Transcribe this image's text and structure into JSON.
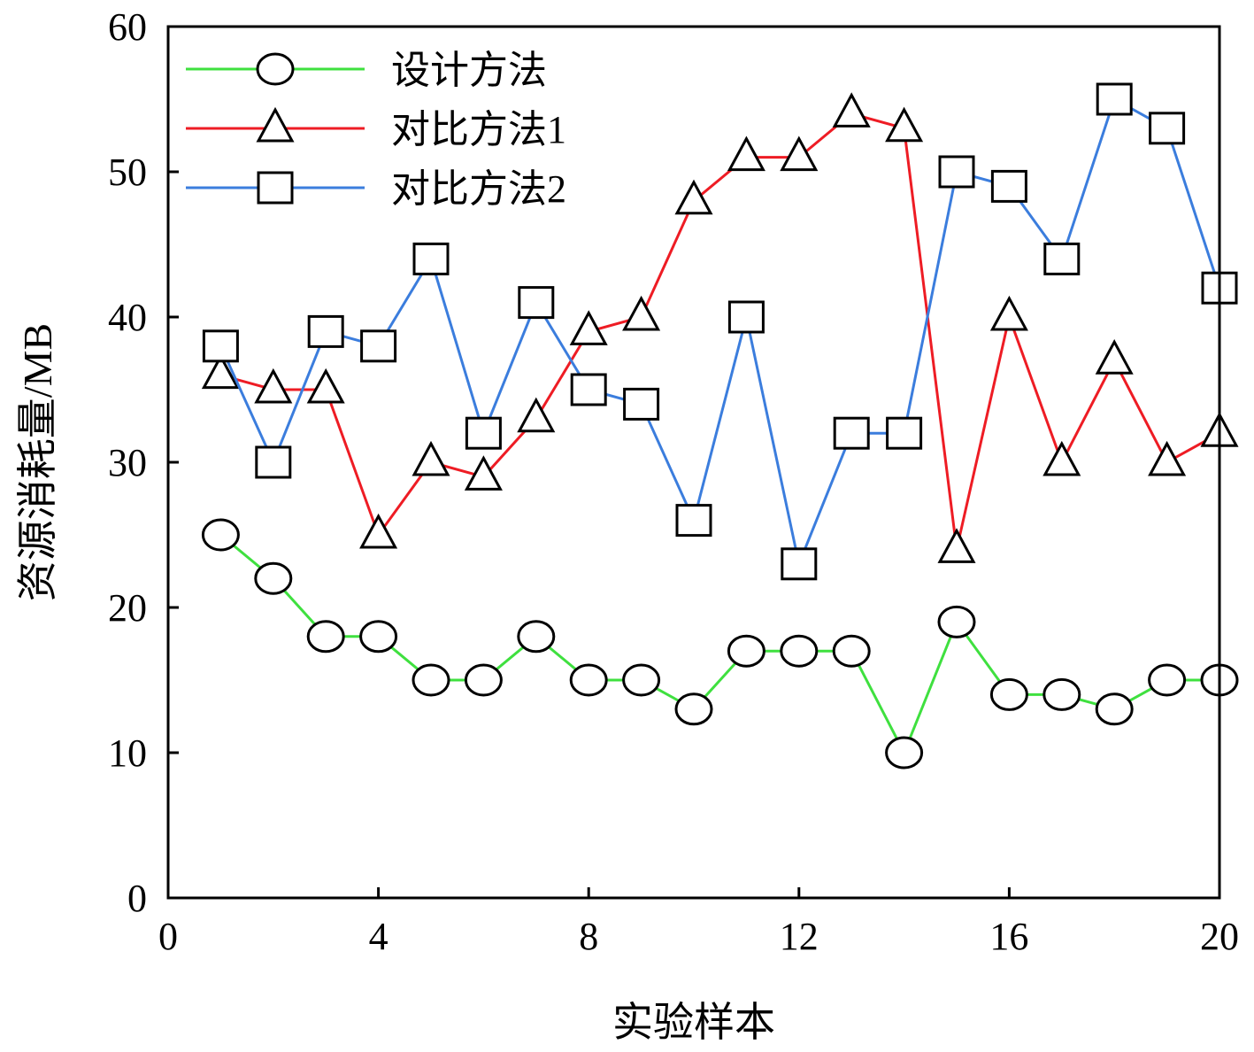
{
  "chart_data": {
    "type": "line",
    "title": "",
    "xlabel": "实验样本",
    "ylabel": "资源消耗量/MB",
    "xlim": [
      0,
      20
    ],
    "ylim": [
      0,
      60
    ],
    "x_ticks": [
      "0",
      "4",
      "8",
      "12",
      "16",
      "20"
    ],
    "y_ticks": [
      "0",
      "10",
      "20",
      "30",
      "40",
      "50",
      "60"
    ],
    "grid": false,
    "legend_position": "top-left",
    "x": [
      1,
      2,
      3,
      4,
      5,
      6,
      7,
      8,
      9,
      10,
      11,
      12,
      13,
      14,
      15,
      16,
      17,
      18,
      19,
      20
    ],
    "series": [
      {
        "name": "设计方法",
        "color": "#3fe03f",
        "marker": "circle",
        "values": [
          25,
          22,
          18,
          18,
          15,
          15,
          18,
          15,
          15,
          13,
          17,
          17,
          17,
          10,
          19,
          14,
          14,
          13,
          15,
          15
        ]
      },
      {
        "name": "对比方法1",
        "color": "#ee1c24",
        "marker": "triangle",
        "values": [
          36,
          35,
          35,
          25,
          30,
          29,
          33,
          39,
          40,
          48,
          51,
          51,
          54,
          53,
          24,
          40,
          30,
          37,
          30,
          32
        ]
      },
      {
        "name": "对比方法2",
        "color": "#3b7ddd",
        "marker": "square",
        "values": [
          38,
          30,
          39,
          38,
          44,
          32,
          41,
          35,
          34,
          26,
          40,
          23,
          32,
          32,
          50,
          49,
          44,
          55,
          53,
          42
        ]
      }
    ]
  }
}
